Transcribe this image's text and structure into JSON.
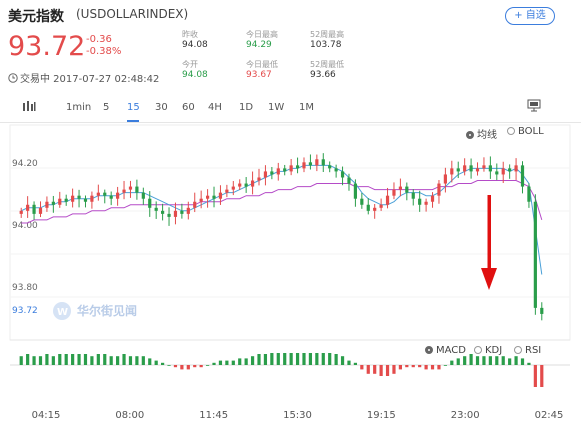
{
  "header": {
    "title": "美元指数",
    "symbol": "(USDOLLARINDEX)",
    "add_button": "+ 自选",
    "price": "93.72",
    "change": "-0.36",
    "change_pct": "-0.38%",
    "status": "交易中 2017-07-27 02:48:42"
  },
  "stats": {
    "prev_close_label": "昨收",
    "prev_close": "94.08",
    "open_label": "今开",
    "open": "94.08",
    "high_label": "今日最高",
    "high": "94.29",
    "low_label": "今日最低",
    "low": "93.67",
    "w52_high_label": "52周最高",
    "w52_high": "103.78",
    "w52_low_label": "52周最低",
    "w52_low": "93.66"
  },
  "toolbar": {
    "periods": [
      "1min",
      "5",
      "15",
      "30",
      "60",
      "4H",
      "1D",
      "1W",
      "1M"
    ],
    "active": "15"
  },
  "indicators": {
    "main": [
      "均线",
      "BOLL"
    ],
    "main_active": "均线",
    "sub": [
      "MACD",
      "KDJ",
      "RSI"
    ],
    "sub_active": "MACD"
  },
  "watermark": "华尔街见闻",
  "colors": {
    "up": "#e34b4b",
    "down": "#2a9d4a",
    "accent": "#3b7ddd",
    "arrow": "#e01010"
  },
  "chart_data": {
    "type": "candlestick",
    "y_ticks": [
      "94.20",
      "94.00",
      "93.80"
    ],
    "last_price_label": "93.72",
    "x_ticks": [
      "04:15",
      "08:00",
      "11:45",
      "15:30",
      "19:15",
      "23:00",
      "02:45"
    ],
    "ylim": [
      93.7,
      94.32
    ],
    "close": [
      94.06,
      94.08,
      94.05,
      94.07,
      94.09,
      94.08,
      94.1,
      94.09,
      94.11,
      94.1,
      94.09,
      94.11,
      94.12,
      94.11,
      94.1,
      94.12,
      94.13,
      94.14,
      94.12,
      94.1,
      94.07,
      94.06,
      94.05,
      94.04,
      94.06,
      94.05,
      94.07,
      94.09,
      94.1,
      94.11,
      94.1,
      94.12,
      94.13,
      94.14,
      94.15,
      94.14,
      94.16,
      94.17,
      94.19,
      94.18,
      94.2,
      94.19,
      94.21,
      94.2,
      94.22,
      94.21,
      94.23,
      94.21,
      94.2,
      94.19,
      94.17,
      94.15,
      94.1,
      94.08,
      94.06,
      94.07,
      94.08,
      94.11,
      94.13,
      94.14,
      94.12,
      94.1,
      94.08,
      94.09,
      94.11,
      94.15,
      94.18,
      94.2,
      94.19,
      94.21,
      94.19,
      94.2,
      94.21,
      94.19,
      94.18,
      94.2,
      94.19,
      94.21,
      94.14,
      94.09,
      93.74,
      93.72
    ],
    "ma_fast": [
      94.06,
      94.07,
      94.07,
      94.07,
      94.08,
      94.08,
      94.09,
      94.09,
      94.1,
      94.1,
      94.1,
      94.1,
      94.11,
      94.11,
      94.11,
      94.11,
      94.12,
      94.12,
      94.12,
      94.12,
      94.11,
      94.1,
      94.09,
      94.08,
      94.07,
      94.06,
      94.06,
      94.07,
      94.08,
      94.09,
      94.1,
      94.11,
      94.12,
      94.12,
      94.13,
      94.14,
      94.15,
      94.16,
      94.17,
      94.18,
      94.19,
      94.19,
      94.2,
      94.2,
      94.21,
      94.21,
      94.21,
      94.21,
      94.21,
      94.2,
      94.19,
      94.17,
      94.15,
      94.12,
      94.1,
      94.09,
      94.08,
      94.08,
      94.09,
      94.11,
      94.12,
      94.12,
      94.12,
      94.11,
      94.11,
      94.12,
      94.14,
      94.16,
      94.18,
      94.19,
      94.2,
      94.2,
      94.2,
      94.2,
      94.2,
      94.2,
      94.19,
      94.2,
      94.18,
      94.15,
      94.0,
      93.85
    ],
    "ma_slow": [
      94.02,
      94.02,
      94.03,
      94.03,
      94.03,
      94.04,
      94.04,
      94.04,
      94.05,
      94.05,
      94.05,
      94.06,
      94.06,
      94.06,
      94.07,
      94.07,
      94.07,
      94.08,
      94.08,
      94.08,
      94.08,
      94.08,
      94.08,
      94.08,
      94.08,
      94.08,
      94.08,
      94.08,
      94.09,
      94.09,
      94.09,
      94.09,
      94.1,
      94.1,
      94.1,
      94.11,
      94.11,
      94.11,
      94.12,
      94.12,
      94.13,
      94.13,
      94.13,
      94.14,
      94.14,
      94.14,
      94.15,
      94.15,
      94.15,
      94.15,
      94.15,
      94.15,
      94.14,
      94.14,
      94.14,
      94.13,
      94.13,
      94.13,
      94.13,
      94.13,
      94.13,
      94.13,
      94.13,
      94.13,
      94.13,
      94.14,
      94.14,
      94.14,
      94.15,
      94.15,
      94.15,
      94.16,
      94.16,
      94.16,
      94.16,
      94.16,
      94.16,
      94.16,
      94.15,
      94.14,
      94.1,
      94.03
    ]
  }
}
